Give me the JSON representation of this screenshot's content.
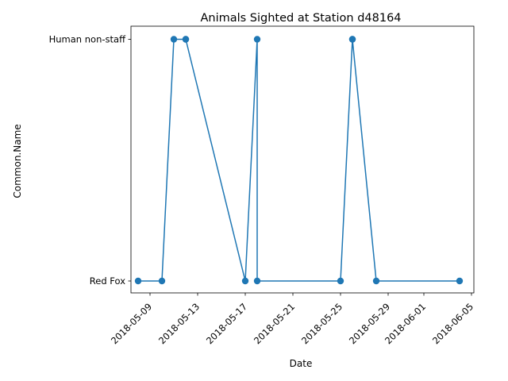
{
  "chart_data": {
    "type": "line",
    "title": "Animals Sighted at Station d48164",
    "xlabel": "Date",
    "ylabel": "Common.Name",
    "categories_y": [
      "Red Fox",
      "Human non-staff"
    ],
    "x_ticks": [
      "2018-05-09",
      "2018-05-13",
      "2018-05-17",
      "2018-05-21",
      "2018-05-25",
      "2018-05-29",
      "2018-06-01",
      "2018-06-05"
    ],
    "xlim": [
      "2018-05-07",
      "2018-06-05"
    ],
    "grid": false,
    "legend": "none",
    "series": [
      {
        "color": "#1f77b4",
        "points": [
          {
            "x": "2018-05-08",
            "y": "Red Fox"
          },
          {
            "x": "2018-05-10",
            "y": "Red Fox"
          },
          {
            "x": "2018-05-11",
            "y": "Human non-staff"
          },
          {
            "x": "2018-05-12",
            "y": "Human non-staff"
          },
          {
            "x": "2018-05-12",
            "y": "Human non-staff"
          },
          {
            "x": "2018-05-17",
            "y": "Red Fox"
          },
          {
            "x": "2018-05-18",
            "y": "Human non-staff"
          },
          {
            "x": "2018-05-18",
            "y": "Red Fox"
          },
          {
            "x": "2018-05-25",
            "y": "Red Fox"
          },
          {
            "x": "2018-05-26",
            "y": "Human non-staff"
          },
          {
            "x": "2018-05-26",
            "y": "Human non-staff"
          },
          {
            "x": "2018-05-28",
            "y": "Red Fox"
          },
          {
            "x": "2018-06-04",
            "y": "Red Fox"
          }
        ]
      }
    ]
  }
}
